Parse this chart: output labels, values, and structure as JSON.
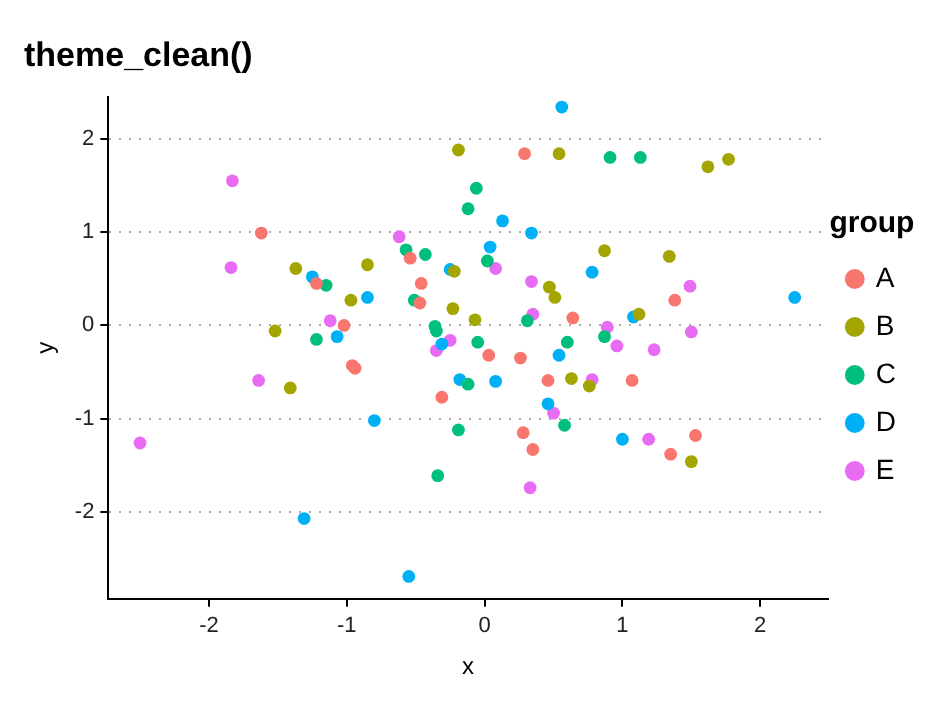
{
  "chart_data": {
    "type": "scatter",
    "title": "theme_clean()",
    "xlabel": "x",
    "ylabel": "y",
    "legend_title": "group",
    "legend": "right",
    "grid": "y",
    "marker": "circle",
    "xlim": [
      -2.73,
      2.49
    ],
    "xticks": [
      -2,
      -1,
      0,
      1,
      2
    ],
    "ylim": [
      -2.93,
      2.45
    ],
    "yticks": [
      -2,
      -1,
      0,
      1,
      2
    ],
    "series": [
      {
        "name": "A",
        "color": "#f8766d",
        "x": [
          -1.62,
          -0.54,
          -1.22,
          -0.46,
          -0.47,
          -1.02,
          -0.96,
          -0.94,
          -0.31,
          0.29,
          1.38,
          0.64,
          0.03,
          0.26,
          0.46,
          1.07,
          0.28,
          0.35,
          1.53,
          1.35
        ],
        "values": [
          0.99,
          0.72,
          0.45,
          0.45,
          0.24,
          0.0,
          -0.43,
          -0.46,
          -0.77,
          1.84,
          0.27,
          0.08,
          -0.32,
          -0.35,
          -0.59,
          -0.59,
          -1.15,
          -1.33,
          -1.18,
          -1.38
        ]
      },
      {
        "name": "B",
        "color": "#a3a500",
        "x": [
          -0.19,
          -1.37,
          -0.85,
          -0.22,
          -0.97,
          -0.23,
          -1.52,
          -1.41,
          0.54,
          1.62,
          1.77,
          0.87,
          1.34,
          0.47,
          0.51,
          -0.07,
          1.12,
          0.63,
          0.76,
          1.5
        ],
        "values": [
          1.88,
          0.61,
          0.65,
          0.58,
          0.27,
          0.18,
          -0.06,
          -0.67,
          1.84,
          1.7,
          1.78,
          0.8,
          0.74,
          0.41,
          0.3,
          0.06,
          0.12,
          -0.57,
          -0.65,
          -1.46
        ]
      },
      {
        "name": "C",
        "color": "#00bf7d",
        "x": [
          -0.57,
          -0.43,
          -0.12,
          -1.15,
          -0.51,
          -0.36,
          -0.35,
          -1.22,
          -0.34,
          -0.12,
          -0.19,
          0.91,
          1.13,
          -0.06,
          0.02,
          0.31,
          -0.05,
          0.6,
          0.87,
          0.58
        ],
        "values": [
          0.81,
          0.76,
          1.25,
          0.43,
          0.27,
          -0.01,
          -0.06,
          -0.15,
          -1.61,
          -0.63,
          -1.12,
          1.8,
          1.8,
          1.47,
          0.69,
          0.05,
          -0.18,
          -0.18,
          -0.12,
          -1.07
        ]
      },
      {
        "name": "D",
        "color": "#00b0f6",
        "x": [
          -1.25,
          -0.25,
          -0.85,
          -1.07,
          -0.31,
          -0.8,
          -1.31,
          -0.55,
          -0.18,
          0.56,
          0.13,
          0.34,
          0.04,
          0.78,
          2.25,
          1.08,
          0.54,
          0.08,
          0.46,
          1.0
        ],
        "values": [
          0.52,
          0.6,
          0.3,
          -0.12,
          -0.2,
          -1.02,
          -2.07,
          -2.69,
          -0.58,
          2.34,
          1.12,
          0.99,
          0.84,
          0.57,
          0.3,
          0.09,
          -0.32,
          -0.6,
          -0.84,
          -1.22
        ]
      },
      {
        "name": "E",
        "color": "#e76bf3",
        "x": [
          -1.83,
          -0.62,
          -1.84,
          -1.12,
          -0.25,
          -0.35,
          -1.64,
          -2.5,
          0.08,
          0.34,
          1.49,
          0.35,
          0.89,
          1.5,
          0.96,
          1.23,
          0.78,
          0.5,
          1.19,
          0.33
        ],
        "values": [
          1.55,
          0.95,
          0.62,
          0.05,
          -0.16,
          -0.27,
          -0.59,
          -1.26,
          0.61,
          0.47,
          0.42,
          0.12,
          -0.02,
          -0.07,
          -0.22,
          -0.26,
          -0.58,
          -0.94,
          -1.22,
          -1.74
        ]
      }
    ]
  }
}
